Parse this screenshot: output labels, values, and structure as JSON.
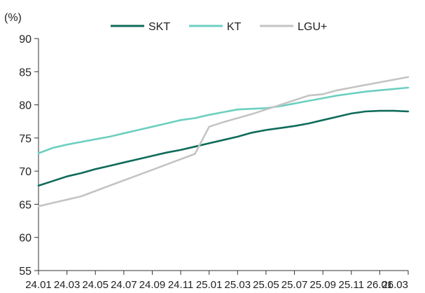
{
  "chart_data": {
    "type": "line",
    "unit": "(%)",
    "ylim": [
      55,
      90
    ],
    "y_ticks": [
      55,
      60,
      65,
      70,
      75,
      80,
      85,
      90
    ],
    "grid": false,
    "legend_position": "top",
    "x_ticks": [
      "24.01",
      "24.03",
      "24.05",
      "24.07",
      "24.09",
      "24.11",
      "25.01",
      "25.03",
      "25.05",
      "25.07",
      "25.09",
      "25.11",
      "26.01",
      "26.03"
    ],
    "x": [
      "24.01",
      "24.02",
      "24.03",
      "24.04",
      "24.05",
      "24.06",
      "24.07",
      "24.08",
      "24.09",
      "24.10",
      "24.11",
      "24.12",
      "25.01",
      "25.02",
      "25.03",
      "25.04",
      "25.05",
      "25.06",
      "25.07",
      "25.08",
      "25.09",
      "25.10",
      "25.11",
      "25.12",
      "26.01",
      "26.02",
      "26.03"
    ],
    "series": [
      {
        "name": "SKT",
        "color": "#0f6b5a",
        "values": [
          67.8,
          68.5,
          69.2,
          69.7,
          70.3,
          70.8,
          71.3,
          71.8,
          72.3,
          72.8,
          73.2,
          73.7,
          74.2,
          74.7,
          75.2,
          75.8,
          76.2,
          76.5,
          76.8,
          77.2,
          77.7,
          78.2,
          78.7,
          79.0,
          79.1,
          79.1,
          79.0
        ]
      },
      {
        "name": "KT",
        "color": "#6ccfc0",
        "values": [
          72.7,
          73.5,
          74.0,
          74.4,
          74.8,
          75.2,
          75.7,
          76.2,
          76.7,
          77.2,
          77.7,
          78.0,
          78.5,
          78.9,
          79.3,
          79.4,
          79.5,
          79.8,
          80.2,
          80.6,
          81.0,
          81.4,
          81.7,
          82.0,
          82.2,
          82.4,
          82.6
        ]
      },
      {
        "name": "LGU+",
        "color": "#c4c4c4",
        "values": [
          64.7,
          65.2,
          65.7,
          66.2,
          67.0,
          67.8,
          68.6,
          69.4,
          70.2,
          71.0,
          71.8,
          72.6,
          76.7,
          77.4,
          78.0,
          78.6,
          79.3,
          80.0,
          80.7,
          81.4,
          81.6,
          82.2,
          82.6,
          83.0,
          83.4,
          83.8,
          84.2
        ]
      }
    ]
  }
}
